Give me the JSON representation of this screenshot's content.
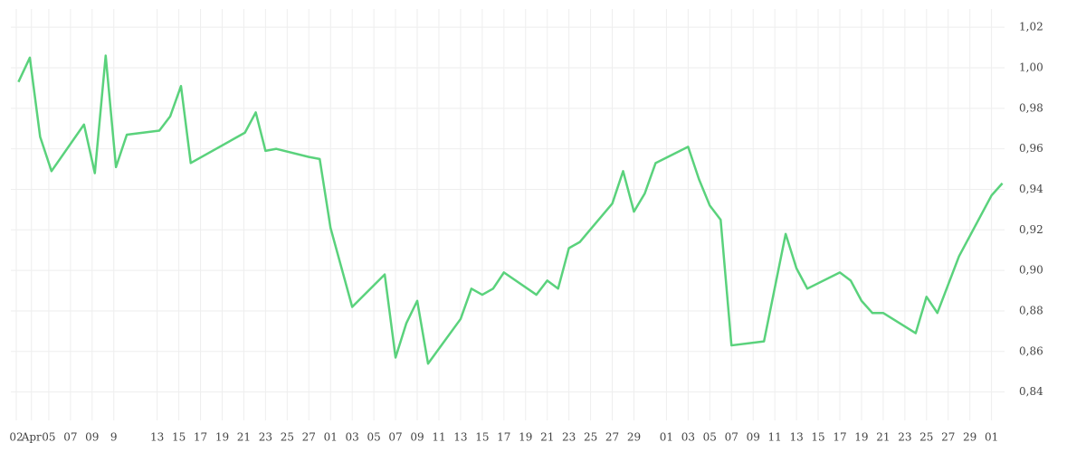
{
  "chart_data": {
    "type": "line",
    "x": [
      0.2,
      1.25,
      2.2,
      3.25,
      6.25,
      7.25,
      8.25,
      9.2,
      10.2,
      13.2,
      14.2,
      15.2,
      16.1,
      21.1,
      22.1,
      23,
      24,
      27,
      28,
      29,
      31,
      34,
      35,
      36,
      37,
      38,
      41,
      42,
      43,
      44,
      45,
      48,
      49,
      50,
      51,
      52,
      55,
      56,
      57,
      58,
      59,
      62,
      63,
      64,
      65,
      66,
      69,
      71,
      72,
      73,
      76,
      77,
      78,
      79,
      80,
      83,
      84,
      85,
      87,
      90,
      91
    ],
    "series": [
      {
        "color": "#5ad27c",
        "values": [
          0.993,
          1.005,
          0.966,
          0.949,
          0.972,
          0.948,
          1.006,
          0.951,
          0.967,
          0.969,
          0.976,
          0.991,
          0.953,
          0.968,
          0.978,
          0.959,
          0.96,
          0.956,
          0.955,
          0.921,
          0.882,
          0.898,
          0.857,
          0.874,
          0.885,
          0.854,
          0.876,
          0.891,
          0.888,
          0.891,
          0.899,
          0.888,
          0.895,
          0.891,
          0.911,
          0.914,
          0.933,
          0.949,
          0.929,
          0.938,
          0.953,
          0.961,
          0.945,
          0.932,
          0.925,
          0.863,
          0.865,
          0.918,
          0.901,
          0.891,
          0.899,
          0.895,
          0.885,
          0.879,
          0.879,
          0.869,
          0.887,
          0.879,
          0.907,
          0.937,
          0.943
        ]
      }
    ],
    "xlim": [
      -0.5,
      91.2
    ],
    "xticks": [
      {
        "value": 0,
        "label": "02"
      },
      {
        "value": 1.4,
        "label": "Apr"
      },
      {
        "value": 3,
        "label": "05"
      },
      {
        "value": 5,
        "label": "07"
      },
      {
        "value": 7,
        "label": "09"
      },
      9,
      13,
      15,
      17,
      19,
      21,
      23,
      25,
      27,
      {
        "value": 29,
        "label": "01"
      },
      {
        "value": 31,
        "label": "03"
      },
      {
        "value": 33,
        "label": "05"
      },
      {
        "value": 35,
        "label": "07"
      },
      {
        "value": 37,
        "label": "09"
      },
      {
        "value": 39,
        "label": "11"
      },
      {
        "value": 41,
        "label": "13"
      },
      {
        "value": 43,
        "label": "15"
      },
      {
        "value": 45,
        "label": "17"
      },
      {
        "value": 47,
        "label": "19"
      },
      {
        "value": 49,
        "label": "21"
      },
      {
        "value": 51,
        "label": "23"
      },
      {
        "value": 53,
        "label": "25"
      },
      {
        "value": 55,
        "label": "27"
      },
      {
        "value": 57,
        "label": "29"
      },
      {
        "value": 60,
        "label": "01"
      },
      {
        "value": 62,
        "label": "03"
      },
      {
        "value": 64,
        "label": "05"
      },
      {
        "value": 66,
        "label": "07"
      },
      {
        "value": 68,
        "label": "09"
      },
      {
        "value": 70,
        "label": "11"
      },
      {
        "value": 72,
        "label": "13"
      },
      {
        "value": 74,
        "label": "15"
      },
      {
        "value": 76,
        "label": "17"
      },
      {
        "value": 78,
        "label": "19"
      },
      {
        "value": 80,
        "label": "21"
      },
      {
        "value": 82,
        "label": "23"
      },
      {
        "value": 84,
        "label": "25"
      },
      {
        "value": 86,
        "label": "27"
      },
      {
        "value": 88,
        "label": "29"
      },
      {
        "value": 90,
        "label": "01"
      }
    ],
    "ylim": [
      0.826,
      1.029
    ],
    "yticks": [
      {
        "value": 0.84,
        "label": "0,84"
      },
      {
        "value": 0.86,
        "label": "0,86"
      },
      {
        "value": 0.88,
        "label": "0,88"
      },
      {
        "value": 0.9,
        "label": "0,90"
      },
      {
        "value": 0.92,
        "label": "0,92"
      },
      {
        "value": 0.94,
        "label": "0,94"
      },
      {
        "value": 0.96,
        "label": "0,96"
      },
      {
        "value": 0.98,
        "label": "0,98"
      },
      {
        "value": 1.0,
        "label": "1,00"
      },
      {
        "value": 1.02,
        "label": "1,02"
      }
    ],
    "grid": true
  }
}
